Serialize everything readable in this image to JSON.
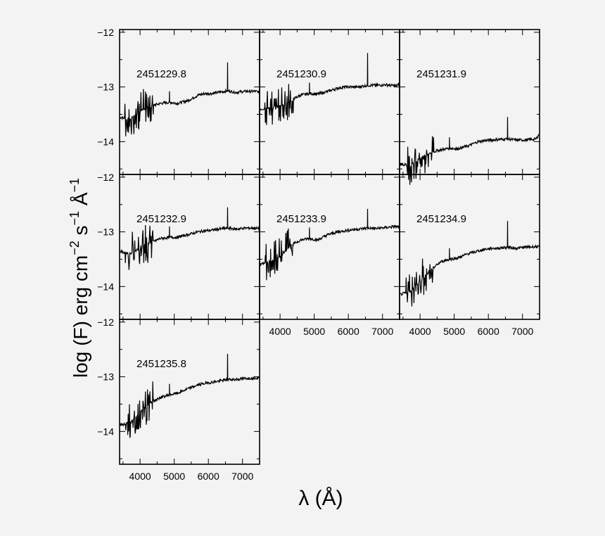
{
  "chart_data": {
    "type": "line",
    "xlabel": "λ (Å)",
    "ylabel_parts": [
      "log (F) erg cm",
      "−2",
      " s",
      "−1",
      " Å",
      "−1"
    ],
    "xlim": [
      3400,
      7500
    ],
    "ylim": [
      -14.6,
      -11.95
    ],
    "xticks": [
      4000,
      5000,
      6000,
      7000
    ],
    "xtick_labels": [
      "4000",
      "5000",
      "6000",
      "7000"
    ],
    "yticks": [
      -12,
      -13,
      -14
    ],
    "ytick_labels": [
      "−12",
      "−13",
      "−14"
    ],
    "grid": false,
    "legend": false,
    "panels": [
      {
        "label": "2451229.8",
        "row": 0,
        "col": 0,
        "x": [
          3400,
          3700,
          4000,
          4300,
          4600,
          4861,
          5100,
          5400,
          5700,
          5900,
          6100,
          6300,
          6563,
          6800,
          7100,
          7400,
          7500
        ],
        "y": [
          -13.55,
          -13.6,
          -13.45,
          -13.35,
          -13.3,
          -13.28,
          -13.3,
          -13.25,
          -13.15,
          -13.12,
          -13.12,
          -13.1,
          -13.07,
          -13.1,
          -13.08,
          -13.08,
          -13.1
        ],
        "emission_line_x": 6563,
        "emission_line_peak": -12.55
      },
      {
        "label": "2451230.9",
        "row": 0,
        "col": 1,
        "x": [
          3400,
          3700,
          4000,
          4300,
          4600,
          4861,
          5100,
          5400,
          5700,
          5900,
          6100,
          6300,
          6563,
          6800,
          7100,
          7400,
          7500
        ],
        "y": [
          -13.4,
          -13.4,
          -13.35,
          -13.25,
          -13.15,
          -13.12,
          -13.13,
          -13.08,
          -13.02,
          -13.0,
          -13.0,
          -13.0,
          -12.97,
          -12.97,
          -12.96,
          -12.98,
          -12.95
        ],
        "emission_line_x": 6563,
        "emission_line_peak": -12.38
      },
      {
        "label": "2451231.9",
        "row": 0,
        "col": 2,
        "x": [
          3400,
          3700,
          4000,
          4300,
          4600,
          4861,
          5100,
          5400,
          5700,
          5900,
          6100,
          6300,
          6563,
          6800,
          7100,
          7400,
          7500
        ],
        "y": [
          -14.4,
          -14.45,
          -14.3,
          -14.2,
          -14.15,
          -14.12,
          -14.13,
          -14.08,
          -14.0,
          -13.98,
          -13.97,
          -13.96,
          -13.95,
          -13.97,
          -13.97,
          -13.95,
          -13.85
        ],
        "emission_line_x": 6563,
        "emission_line_peak": -13.55
      },
      {
        "label": "2451232.9",
        "row": 1,
        "col": 0,
        "x": [
          3400,
          3700,
          4000,
          4300,
          4600,
          4861,
          5100,
          5400,
          5700,
          5900,
          6100,
          6300,
          6563,
          6800,
          7100,
          7400,
          7500
        ],
        "y": [
          -13.35,
          -13.4,
          -13.3,
          -13.2,
          -13.12,
          -13.1,
          -13.1,
          -13.05,
          -13.0,
          -12.98,
          -12.97,
          -12.95,
          -12.93,
          -12.95,
          -12.93,
          -12.93,
          -12.95
        ],
        "emission_line_x": 6563,
        "emission_line_peak": -12.55
      },
      {
        "label": "2451233.9",
        "row": 1,
        "col": 1,
        "x": [
          3400,
          3700,
          4000,
          4300,
          4600,
          4861,
          5100,
          5400,
          5700,
          5900,
          6100,
          6300,
          6563,
          6800,
          7100,
          7400,
          7500
        ],
        "y": [
          -13.6,
          -13.55,
          -13.45,
          -13.25,
          -13.15,
          -13.12,
          -13.15,
          -13.05,
          -13.0,
          -12.98,
          -12.96,
          -12.95,
          -12.93,
          -12.94,
          -12.92,
          -12.9,
          -12.92
        ],
        "emission_line_x": 6563,
        "emission_line_peak": -12.58
      },
      {
        "label": "2451234.9",
        "row": 1,
        "col": 2,
        "x": [
          3400,
          3700,
          4000,
          4300,
          4600,
          4861,
          5100,
          5400,
          5700,
          5900,
          6100,
          6300,
          6563,
          6800,
          7100,
          7400,
          7500
        ],
        "y": [
          -14.15,
          -14.1,
          -13.9,
          -13.7,
          -13.55,
          -13.5,
          -13.48,
          -13.4,
          -13.35,
          -13.32,
          -13.3,
          -13.3,
          -13.28,
          -13.3,
          -13.28,
          -13.27,
          -13.28
        ],
        "emission_line_x": 6563,
        "emission_line_peak": -12.8
      },
      {
        "label": "2451235.8",
        "row": 2,
        "col": 0,
        "x": [
          3400,
          3700,
          4000,
          4300,
          4600,
          4861,
          5100,
          5400,
          5700,
          5900,
          6100,
          6300,
          6563,
          6800,
          7100,
          7400,
          7500
        ],
        "y": [
          -13.88,
          -13.85,
          -13.65,
          -13.48,
          -13.38,
          -13.33,
          -13.3,
          -13.22,
          -13.15,
          -13.12,
          -13.1,
          -13.08,
          -13.05,
          -13.05,
          -13.03,
          -13.02,
          -13.02
        ],
        "emission_line_x": 6563,
        "emission_line_peak": -12.58
      }
    ]
  }
}
